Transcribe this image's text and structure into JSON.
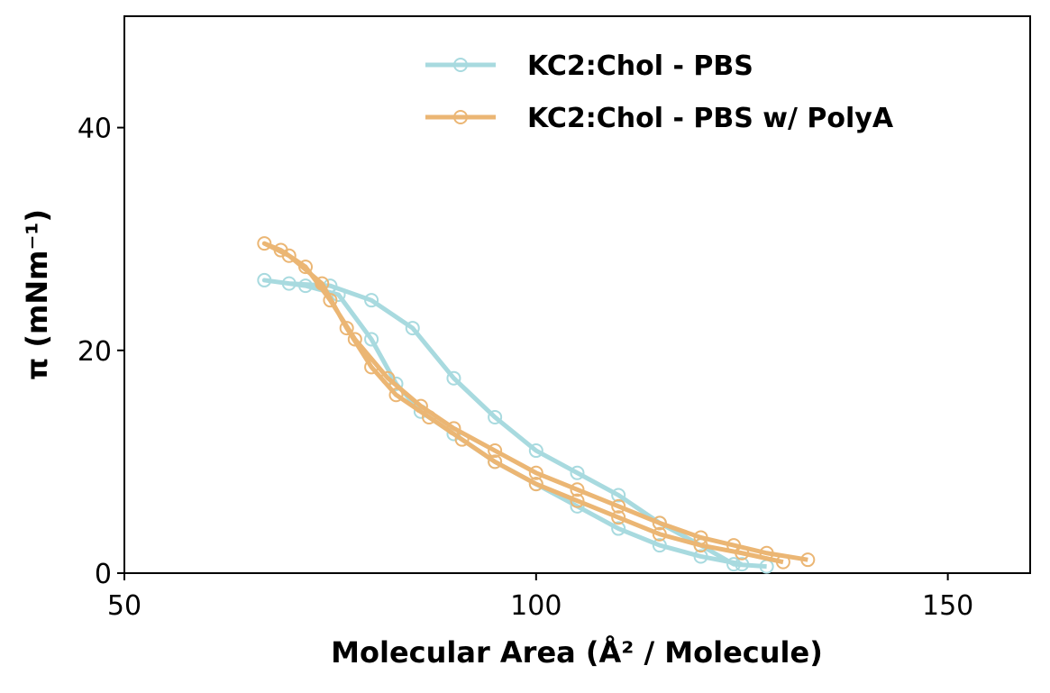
{
  "chart_data": {
    "type": "line",
    "x_label": "Molecular Area (Å² / Molecule)",
    "y_label": "π (mNm⁻¹)",
    "xlim": [
      50,
      160
    ],
    "ylim": [
      0,
      50
    ],
    "xticks": [
      50,
      100,
      150
    ],
    "yticks": [
      0,
      20,
      40
    ],
    "grid": false,
    "legend": "upper right",
    "markers": "open-circle",
    "series": [
      {
        "name": "KC2:Chol - PBS",
        "color": "#a8dadf",
        "x": [
          128,
          124,
          120,
          115,
          110,
          105,
          100,
          95,
          90,
          85,
          80,
          75,
          70,
          67,
          72,
          76,
          80,
          83,
          86,
          90,
          95,
          100,
          105,
          110,
          115,
          120,
          125
        ],
        "values": [
          0.6,
          0.8,
          2.5,
          4.5,
          7,
          9,
          11,
          14,
          17.5,
          22,
          24.5,
          25.8,
          26,
          26.3,
          25.8,
          25,
          21,
          17,
          14.5,
          12.5,
          10,
          8,
          6,
          4,
          2.5,
          1.5,
          0.8
        ]
      },
      {
        "name": "KC2:Chol - PBS w/ PolyA",
        "color": "#ebb674",
        "x": [
          133,
          128,
          124,
          120,
          115,
          110,
          105,
          100,
          95,
          90,
          86,
          82,
          78,
          75,
          72,
          69,
          67,
          70,
          74,
          77,
          80,
          83,
          87,
          91,
          95,
          100,
          105,
          110,
          115,
          120,
          125,
          130
        ],
        "values": [
          1.2,
          1.8,
          2.5,
          3.2,
          4.5,
          6,
          7.5,
          9,
          11,
          13,
          15,
          17.5,
          21,
          24.5,
          27.5,
          29,
          29.6,
          28.5,
          26,
          22,
          18.5,
          16,
          14,
          12,
          10,
          8,
          6.5,
          5,
          3.5,
          2.5,
          1.8,
          1.0
        ]
      }
    ]
  }
}
